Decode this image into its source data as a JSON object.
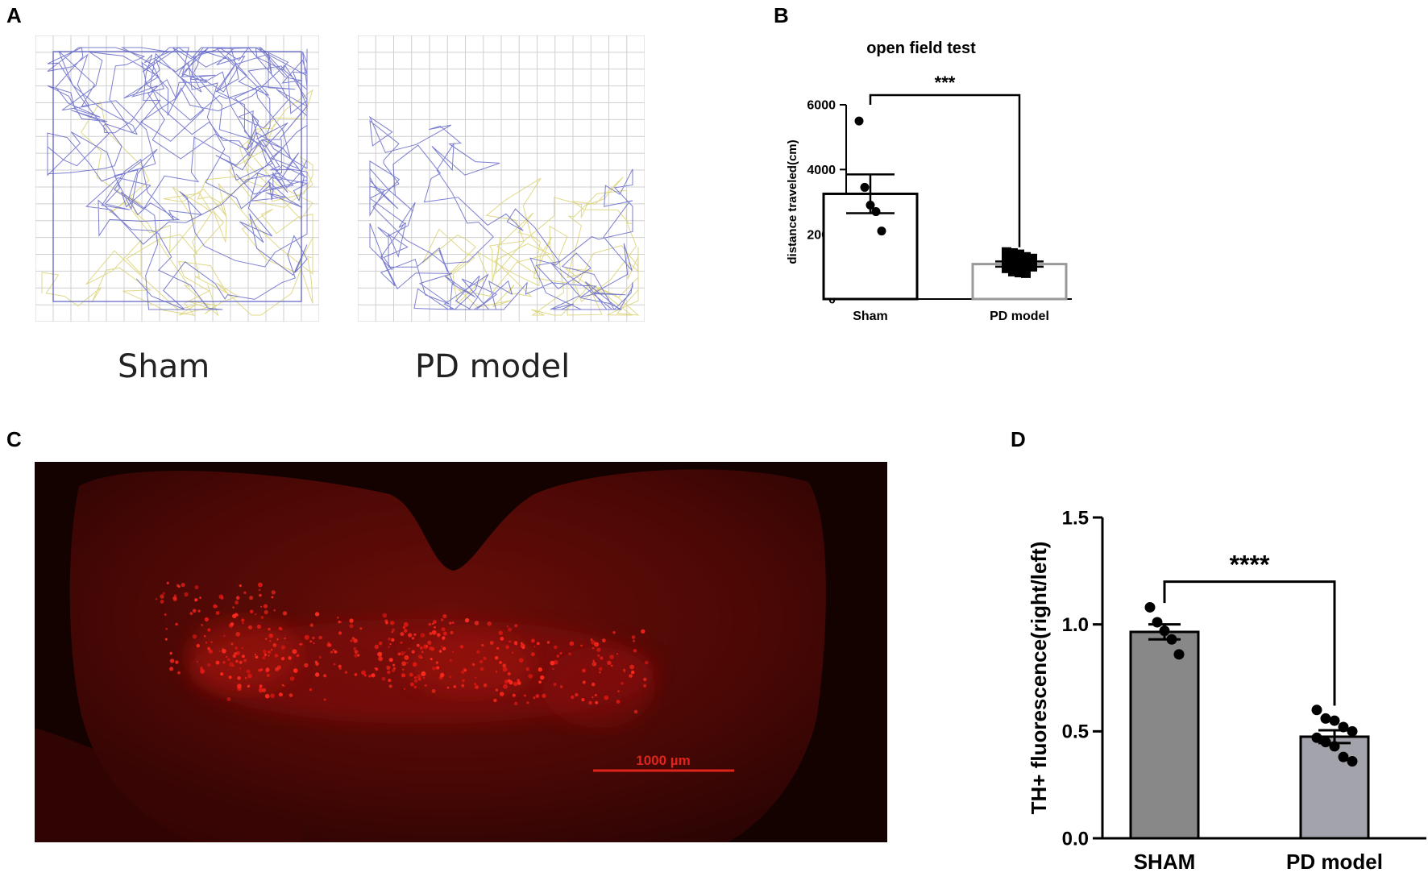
{
  "panels": {
    "a": {
      "letter": "A",
      "captions": [
        "Sham",
        "PD model"
      ]
    },
    "b": {
      "letter": "B"
    },
    "c": {
      "letter": "C",
      "scale_bar_label": "1000 µm"
    },
    "d": {
      "letter": "D"
    }
  },
  "chart_data": [
    {
      "type": "bar",
      "title": "open field test",
      "xlabel": "",
      "ylabel": "distance traveled(cm)",
      "categories": [
        "Sham",
        "PD model"
      ],
      "values": [
        3250,
        1080
      ],
      "errors": [
        600,
        80
      ],
      "points": [
        [
          5500,
          3450,
          2900,
          2700,
          2100
        ],
        [
          1450,
          1420,
          1380,
          1300,
          1250,
          1200,
          1150,
          1100,
          1080,
          1000,
          950,
          850,
          820,
          800
        ]
      ],
      "ylim": [
        0,
        6000
      ],
      "yticks": [
        0,
        2000,
        4000,
        6000
      ],
      "significance": "***",
      "colors": {
        "bars": [
          "#ffffff",
          "#ffffff"
        ],
        "edges": [
          "#000000",
          "#999999"
        ]
      }
    },
    {
      "type": "bar",
      "title": "",
      "xlabel": "",
      "ylabel": "TH+ fluorescence(right/left)",
      "categories": [
        "SHAM",
        "PD model"
      ],
      "values": [
        0.965,
        0.475
      ],
      "errors": [
        0.035,
        0.03
      ],
      "points": [
        [
          1.08,
          1.01,
          0.97,
          0.93,
          0.86
        ],
        [
          0.6,
          0.56,
          0.55,
          0.52,
          0.5,
          0.47,
          0.45,
          0.43,
          0.38,
          0.36
        ]
      ],
      "ylim": [
        0,
        1.5
      ],
      "yticks": [
        "0.0",
        "0.5",
        "1.0",
        "1.5"
      ],
      "significance": "****",
      "colors": {
        "bars": [
          "#888888",
          "#a3a3ab"
        ],
        "edges": [
          "#000000",
          "#000000"
        ]
      }
    }
  ]
}
